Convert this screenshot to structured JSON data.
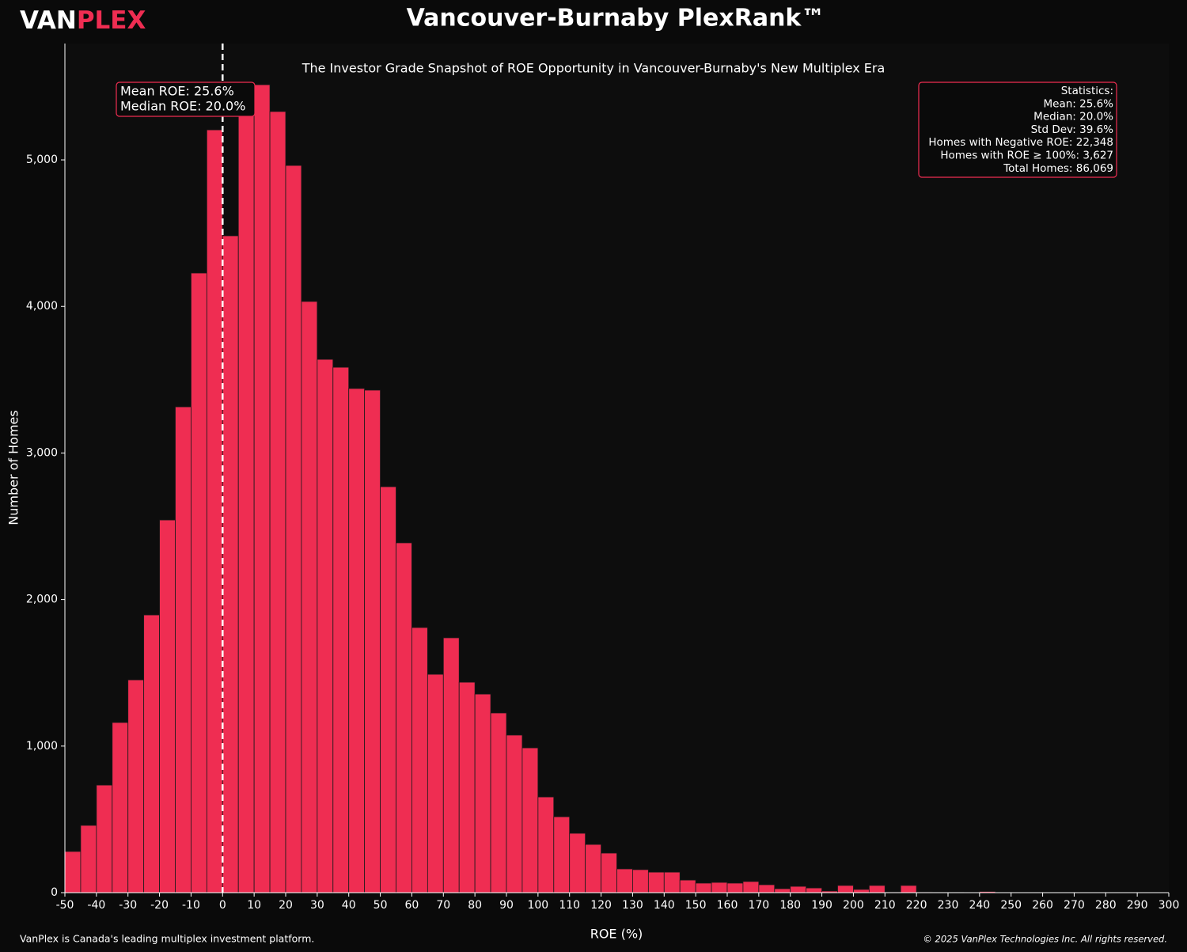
{
  "brand": {
    "part1": "VAN",
    "part2": "PLEX"
  },
  "footer": {
    "left": "VanPlex is Canada's leading multiplex investment platform.",
    "right": "© 2025 VanPlex Technologies Inc. All rights reserved."
  },
  "chart_data": {
    "type": "histogram",
    "title": "Vancouver-Burnaby PlexRank™",
    "subtitle": "The Investor Grade Snapshot of ROE Opportunity in Vancouver-Burnaby's New Multiplex Era",
    "x_label": "ROE (%)",
    "y_label": "Number of Homes",
    "color": "#ef2d52",
    "bins": [
      -50,
      -45,
      -40,
      -35,
      -30,
      -25,
      -20,
      -15,
      -10,
      -5,
      0,
      5,
      10,
      15,
      20,
      25,
      30,
      35,
      40,
      45,
      50,
      55,
      60,
      65,
      70,
      75,
      80,
      85,
      90,
      95,
      100,
      105,
      110,
      115,
      120,
      125,
      130,
      135,
      140,
      145,
      150,
      155,
      160,
      165,
      170,
      175,
      180,
      185,
      190,
      195,
      200,
      205,
      210,
      215,
      220,
      225,
      230,
      235,
      240,
      245,
      250,
      255,
      260,
      265,
      270,
      275,
      280,
      285,
      290,
      295,
      300
    ],
    "counts": [
      281,
      459,
      734,
      1161,
      1452,
      1895,
      2543,
      3315,
      4228,
      5205,
      4482,
      5350,
      5513,
      5330,
      4962,
      4034,
      3639,
      3585,
      3440,
      3429,
      2770,
      2387,
      1809,
      1490,
      1739,
      1436,
      1355,
      1226,
      1075,
      988,
      653,
      518,
      405,
      329,
      270,
      162,
      157,
      140,
      140,
      86,
      65,
      70,
      65,
      76,
      54,
      27,
      43,
      32,
      11,
      49,
      22,
      49,
      5,
      49,
      5,
      3,
      3,
      0,
      8,
      0,
      0,
      0,
      0,
      0,
      0,
      0,
      0,
      0,
      0,
      0
    ],
    "xlim": [
      -50,
      300
    ],
    "ylim": [
      0,
      5794
    ],
    "xticks": [
      -50,
      -40,
      -30,
      -20,
      -10,
      0,
      10,
      20,
      30,
      40,
      50,
      60,
      70,
      80,
      90,
      100,
      110,
      120,
      130,
      140,
      150,
      160,
      170,
      180,
      190,
      200,
      210,
      220,
      230,
      240,
      250,
      260,
      270,
      280,
      290,
      300
    ],
    "yticks": [
      0,
      {
        "value": 1000,
        "label": "1,000"
      },
      {
        "value": 2000,
        "label": "2,000"
      },
      {
        "value": 3000,
        "label": "3,000"
      },
      {
        "value": 4000,
        "label": "4,000"
      },
      {
        "value": 5000,
        "label": "5,000"
      }
    ],
    "reference_line": 0,
    "annotation": [
      "Mean ROE: 25.6%",
      "Median ROE: 20.0%"
    ],
    "stats_box": [
      "Statistics:",
      "Mean: 25.6%",
      "Median: 20.0%",
      "Std Dev: 39.6%",
      "Homes with Negative ROE: 22,348",
      "Homes with ROE ≥ 100%: 3,627",
      "Total Homes: 86,069"
    ]
  }
}
